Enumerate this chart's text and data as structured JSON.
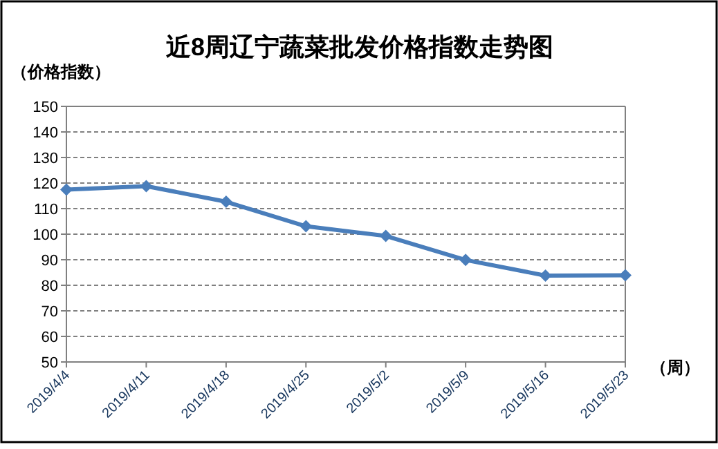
{
  "chart_data": {
    "type": "line",
    "title": "近8周辽宁蔬菜批发价格指数走势图",
    "ylabel": "（价格指数）",
    "xlabel": "（周）",
    "categories": [
      "2019/4/4",
      "2019/4/11",
      "2019/4/18",
      "2019/4/25",
      "2019/5/2",
      "2019/5/9",
      "2019/5/16",
      "2019/5/23"
    ],
    "series": [
      {
        "color": "#4a7ebb",
        "values": [
          117.4,
          118.8,
          112.7,
          103.1,
          99.3,
          89.9,
          83.8,
          83.9
        ]
      }
    ],
    "ylim": [
      50,
      150
    ],
    "yticks": [
      50,
      60,
      70,
      80,
      90,
      100,
      110,
      120,
      130,
      140,
      150
    ],
    "grid": "y",
    "marker": "diamond",
    "line_style": "solid"
  }
}
